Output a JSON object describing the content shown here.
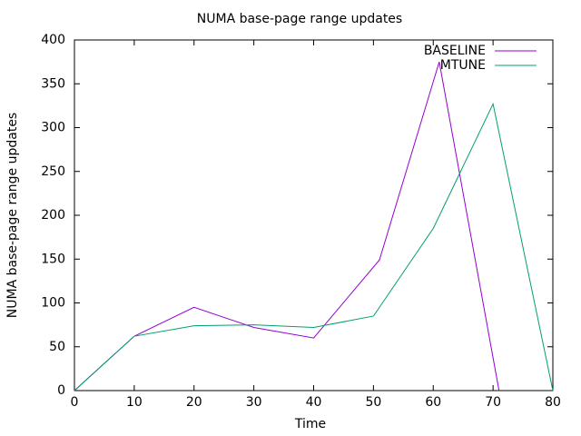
{
  "chart_data": {
    "type": "line",
    "title": "NUMA base-page range updates",
    "xlabel": "Time",
    "ylabel": "NUMA base-page range updates",
    "xlim": [
      0,
      80
    ],
    "xticks": [
      0,
      10,
      20,
      30,
      40,
      50,
      60,
      70,
      80
    ],
    "ylim": [
      0,
      400
    ],
    "yticks": [
      0,
      50,
      100,
      150,
      200,
      250,
      300,
      350,
      400
    ],
    "grid": false,
    "legend": "top-right",
    "series": [
      {
        "name": "BASELINE",
        "color": "#9400d3",
        "x": [
          0,
          10,
          20,
          30,
          40,
          51,
          61,
          71
        ],
        "values": [
          0,
          62,
          95,
          72,
          60,
          149,
          375,
          0
        ]
      },
      {
        "name": "MTUNE",
        "color": "#009e73",
        "x": [
          0,
          10,
          20,
          30,
          40,
          50,
          60,
          70,
          80
        ],
        "values": [
          0,
          62,
          74,
          75,
          72,
          85,
          185,
          327,
          0
        ]
      }
    ]
  }
}
